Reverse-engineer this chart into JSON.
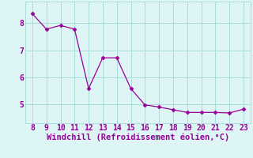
{
  "x": [
    8,
    9,
    10,
    11,
    12,
    13,
    14,
    15,
    16,
    17,
    18,
    19,
    20,
    21,
    22,
    23
  ],
  "y": [
    8.35,
    7.78,
    7.92,
    7.78,
    5.58,
    6.72,
    6.72,
    5.58,
    4.98,
    4.9,
    4.8,
    4.7,
    4.7,
    4.7,
    4.68,
    4.82
  ],
  "line_color": "#990099",
  "marker": "D",
  "marker_size": 2.5,
  "background_color": "#ddf5f5",
  "grid_color": "#aadddd",
  "xlabel": "Windchill (Refroidissement éolien,°C)",
  "xlabel_color": "#990099",
  "xlabel_fontsize": 7.5,
  "tick_color": "#990099",
  "tick_fontsize": 7,
  "xlim": [
    7.5,
    23.5
  ],
  "ylim": [
    4.3,
    8.8
  ],
  "yticks": [
    5,
    6,
    7,
    8
  ],
  "xticks": [
    8,
    9,
    10,
    11,
    12,
    13,
    14,
    15,
    16,
    17,
    18,
    19,
    20,
    21,
    22,
    23
  ]
}
